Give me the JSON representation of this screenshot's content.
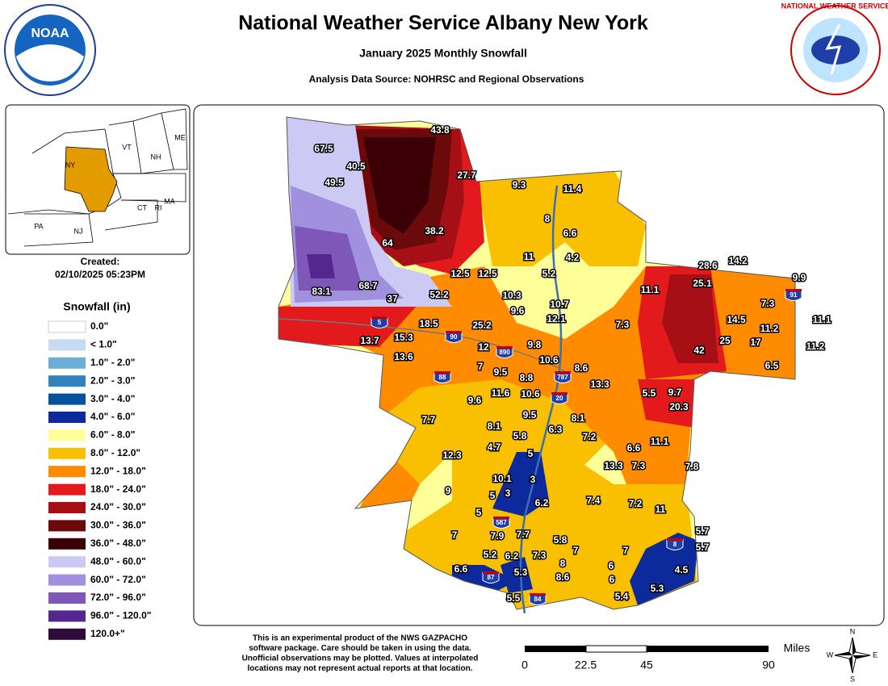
{
  "header": {
    "title": "National Weather Service Albany New York",
    "subtitle": "January 2025 Monthly Snowfall",
    "source": "Analysis Data Source: NOHRSC and Regional Observations"
  },
  "logos": {
    "noaa": "NOAA",
    "nws": "NATIONAL WEATHER SERVICE"
  },
  "inset": {
    "states": [
      "ME",
      "VT",
      "NH",
      "NY",
      "MA",
      "CT",
      "RI",
      "PA",
      "NJ"
    ]
  },
  "created": {
    "label": "Created:",
    "date": "02/10/2025 05:23PM"
  },
  "legend": {
    "title": "Snowfall (in)",
    "items": [
      {
        "label": "0.0\"",
        "color": "#ffffff"
      },
      {
        "label": "< 1.0\"",
        "color": "#c6dbef"
      },
      {
        "label": "1.0\" - 2.0\"",
        "color": "#6baed6"
      },
      {
        "label": "2.0\" - 3.0\"",
        "color": "#3182bd"
      },
      {
        "label": "3.0\" - 4.0\"",
        "color": "#08519c"
      },
      {
        "label": "4.0\" - 6.0\"",
        "color": "#0c2a9c"
      },
      {
        "label": "6.0\" - 8.0\"",
        "color": "#ffff99"
      },
      {
        "label": "8.0\" - 12.0\"",
        "color": "#f8c000"
      },
      {
        "label": "12.0\" - 18.0\"",
        "color": "#ff8c00"
      },
      {
        "label": "18.0\" - 24.0\"",
        "color": "#e31a1c"
      },
      {
        "label": "24.0\" - 30.0\"",
        "color": "#a50f15"
      },
      {
        "label": "30.0\" - 36.0\"",
        "color": "#6b0a0a"
      },
      {
        "label": "36.0\" - 48.0\"",
        "color": "#3a0005"
      },
      {
        "label": "48.0\" - 60.0\"",
        "color": "#cccaf5"
      },
      {
        "label": "60.0\" - 72.0\"",
        "color": "#a190de"
      },
      {
        "label": "72.0\" - 96.0\"",
        "color": "#7e57b8"
      },
      {
        "label": "96.0\" - 120.0\"",
        "color": "#54278f"
      },
      {
        "label": "120.0+\"",
        "color": "#2e0b3a"
      }
    ]
  },
  "map": {
    "observations": [
      43.8,
      67.5,
      40.5,
      49.5,
      27.7,
      9.3,
      11.4,
      8,
      6.6,
      38.2,
      64,
      11,
      4.2,
      5.2,
      12.5,
      12.5,
      28.6,
      14.2,
      9.9,
      25.1,
      11.1,
      83.1,
      68.7,
      52.2,
      37,
      10.3,
      9.6,
      10.7,
      12.1,
      7.3,
      14.5,
      11.1,
      11.2,
      18.5,
      25.2,
      7.3,
      17,
      11.2,
      13.7,
      15.3,
      12,
      9.8,
      42,
      25,
      13.6,
      10.6,
      6.5,
      7,
      9.5,
      8.8,
      8.6,
      13.3,
      11.6,
      10.6,
      5.5,
      9.7,
      20.3,
      9.6,
      7.7,
      9.5,
      8.1,
      8.1,
      6.3,
      5.8,
      7.2,
      11.1,
      6.6,
      4.7,
      5,
      12.3,
      13.3,
      7.3,
      7.8,
      10.1,
      3,
      5,
      3,
      9,
      6.2,
      7.4,
      7.2,
      11,
      5,
      5.7,
      7,
      7.9,
      7.7,
      5.8,
      7,
      5.7,
      5.2,
      6.2,
      7.3,
      8,
      7,
      6,
      4.5,
      6.6,
      5.3,
      8.6,
      6,
      5.3,
      5.4,
      5.5
    ],
    "highways": [
      5,
      90,
      88,
      890,
      787,
      20,
      587,
      87,
      84,
      8,
      91
    ]
  },
  "footer": {
    "disclaimer": [
      "This is an experimental product of the NWS GAZPACHO",
      "software package. Care should be taken in using the data.",
      "Unofficial observations may be plotted. Values at interpolated",
      "locations may not represent actual reports at that location."
    ],
    "scale": {
      "ticks": [
        0,
        22.5,
        45,
        90
      ],
      "unit": "Miles"
    }
  },
  "compass": [
    "N",
    "E",
    "S",
    "W"
  ]
}
